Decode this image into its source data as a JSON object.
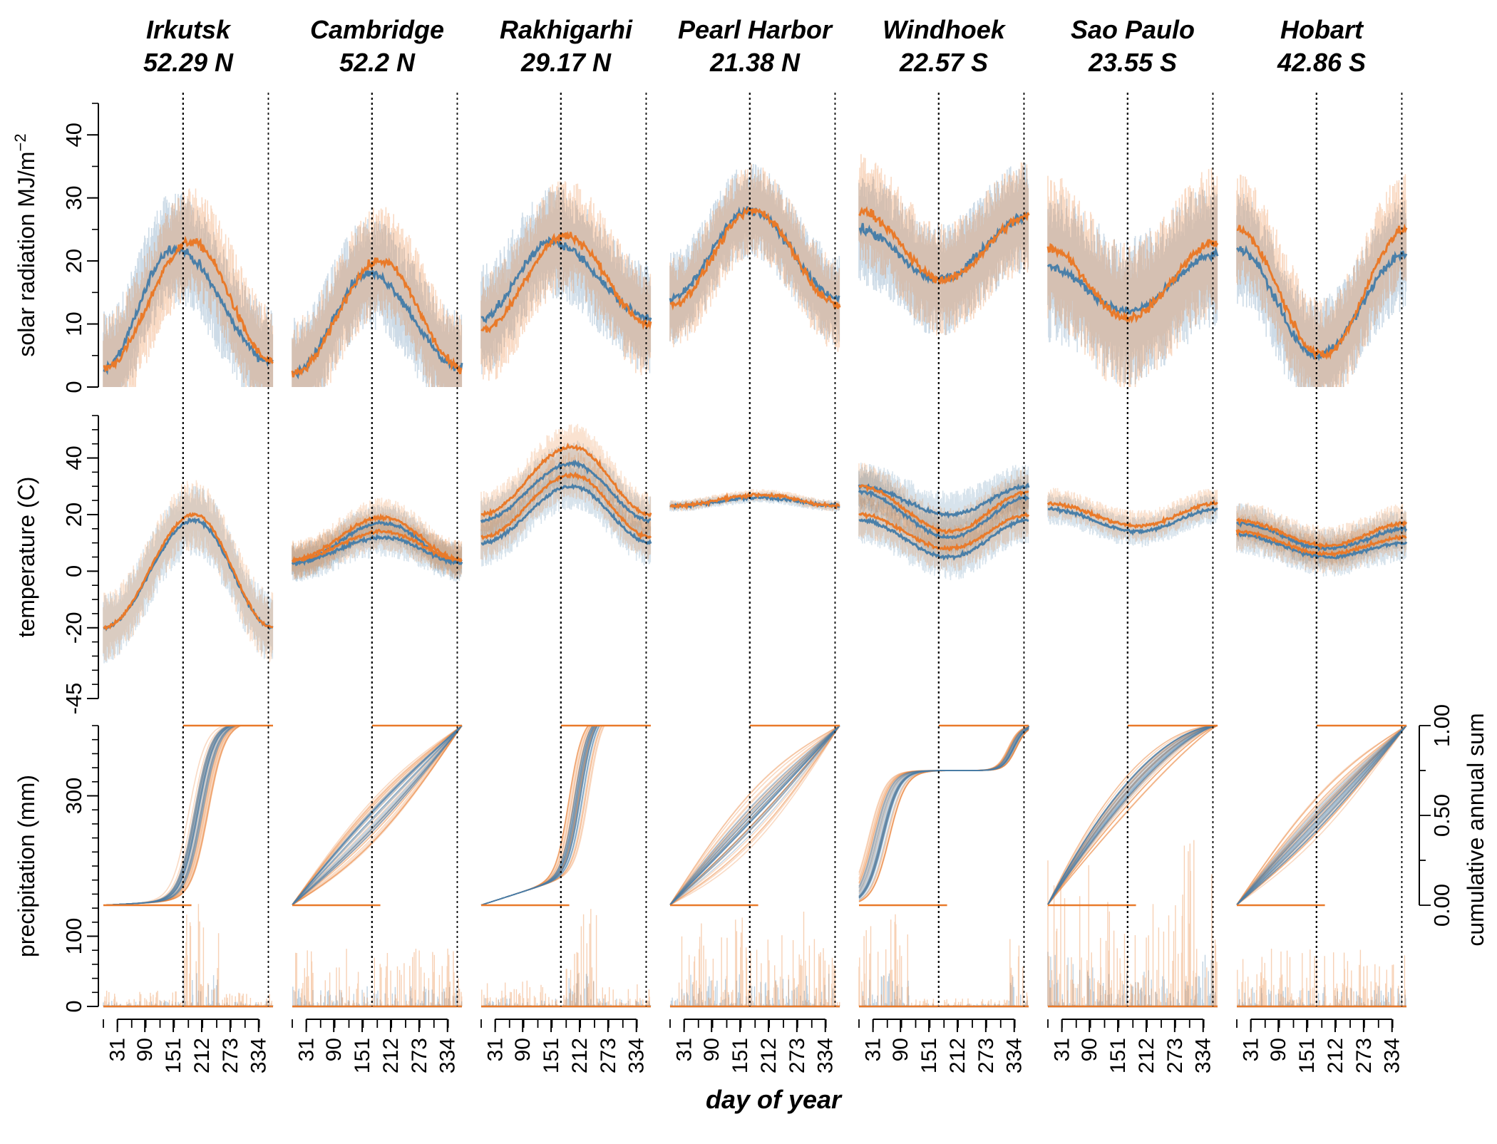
{
  "chart_data": {
    "type": "line",
    "sites": [
      {
        "name": "Irkutsk",
        "lat": "52.29 N",
        "hemisphere": "N"
      },
      {
        "name": "Cambridge",
        "lat": "52.2 N",
        "hemisphere": "N"
      },
      {
        "name": "Rakhigarhi",
        "lat": "29.17 N",
        "hemisphere": "N"
      },
      {
        "name": "Pearl Harbor",
        "lat": "21.38 N",
        "hemisphere": "N"
      },
      {
        "name": "Windhoek",
        "lat": "22.57 S",
        "hemisphere": "S"
      },
      {
        "name": "Sao Paulo",
        "lat": "23.55 S",
        "hemisphere": "S"
      },
      {
        "name": "Hobart",
        "lat": "42.86 S",
        "hemisphere": "S"
      }
    ],
    "xlabel": "day of year",
    "x_ticks": [
      "31",
      "90",
      "151",
      "212",
      "273",
      "334"
    ],
    "x_tick_values": [
      31,
      90,
      151,
      212,
      273,
      334
    ],
    "x_range": [
      1,
      365
    ],
    "reference_days": [
      172,
      355
    ],
    "rows": [
      {
        "id": "solar",
        "ylabel": "solar radiation MJ/m⁻²",
        "ylabel_main": "solar radiation ",
        "ylabel_unit": "MJ",
        "ylabel_per": "/",
        "ylabel_m": "m",
        "ylabel_exp": "−2",
        "ylim": [
          0,
          45
        ],
        "ticks": [
          0,
          10,
          20,
          30,
          40
        ],
        "tick_labels": [
          "0",
          "10",
          "20",
          "30",
          "40"
        ]
      },
      {
        "id": "temperature",
        "ylabel": "temperature (C)",
        "ylim": [
          -45,
          55
        ],
        "ticks": [
          -45,
          -20,
          0,
          20,
          40
        ],
        "tick_labels": [
          "-45",
          "-20",
          "0",
          "20",
          "40"
        ]
      },
      {
        "id": "precipitation",
        "ylabel": "precipitation (mm)",
        "ylim": [
          0,
          400
        ],
        "ticks": [
          0,
          100,
          300
        ],
        "tick_labels": [
          "0",
          "100",
          "300"
        ],
        "right_ylabel": "cumulative annual sum",
        "right_ticks": [
          0,
          0.5,
          1
        ],
        "right_tick_labels": [
          "0.00",
          "0.50",
          "1.00"
        ]
      }
    ],
    "series": [
      {
        "name": "blue",
        "color": "#4a7fa8"
      },
      {
        "name": "orange",
        "color": "#e97a2a"
      }
    ],
    "solar_means": {
      "Irkutsk": {
        "blue": [
          3,
          22,
          4,
          152
        ],
        "orange": [
          3,
          23,
          4,
          190
        ]
      },
      "Cambridge": {
        "blue": [
          2,
          18,
          3,
          165
        ],
        "orange": [
          2,
          20,
          3,
          190
        ]
      },
      "Rakhigarhi": {
        "blue": [
          11,
          23,
          11,
          150
        ],
        "orange": [
          9,
          24,
          10,
          182
        ]
      },
      "Pearl Harbor": {
        "blue": [
          14,
          28,
          14,
          172
        ],
        "orange": [
          13,
          28,
          13,
          180
        ]
      },
      "Windhoek": {
        "blue": [
          25,
          17,
          27,
          172
        ],
        "orange": [
          28,
          17,
          27,
          182
        ]
      },
      "Sao Paulo": {
        "blue": [
          19,
          12,
          21,
          172
        ],
        "orange": [
          22,
          11,
          23,
          172
        ]
      },
      "Hobart": {
        "blue": [
          22,
          5,
          21,
          172
        ],
        "orange": [
          25,
          5,
          25,
          185
        ]
      }
    },
    "temperature_means": {
      "Irkutsk": {
        "blue": [
          [
            -20,
            18,
            -20
          ]
        ],
        "orange": [
          [
            -20,
            20,
            -20
          ]
        ]
      },
      "Cambridge": {
        "blue": [
          [
            3,
            12,
            3
          ],
          [
            3,
            17,
            3
          ]
        ],
        "orange": [
          [
            4,
            14,
            4
          ],
          [
            4,
            19,
            4
          ]
        ]
      },
      "Rakhigarhi": {
        "blue": [
          [
            10,
            30,
            10
          ],
          [
            18,
            38,
            18
          ]
        ],
        "orange": [
          [
            12,
            34,
            12
          ],
          [
            20,
            44,
            20
          ]
        ]
      },
      "Pearl Harbor": {
        "blue": [
          [
            23,
            26,
            23
          ]
        ],
        "orange": [
          [
            23,
            27,
            23
          ]
        ]
      },
      "Windhoek": {
        "blue": [
          [
            18,
            5,
            18
          ],
          [
            28,
            12,
            26
          ],
          [
            30,
            20,
            30
          ]
        ],
        "orange": [
          [
            20,
            8,
            20
          ],
          [
            30,
            14,
            28
          ]
        ]
      },
      "Sao Paulo": {
        "blue": [
          [
            22,
            14,
            22
          ]
        ],
        "orange": [
          [
            24,
            16,
            24
          ]
        ]
      },
      "Hobart": {
        "blue": [
          [
            13,
            5,
            10
          ],
          [
            17,
            8,
            15
          ]
        ],
        "orange": [
          [
            14,
            6,
            12
          ],
          [
            18,
            9,
            17
          ]
        ]
      }
    }
  }
}
